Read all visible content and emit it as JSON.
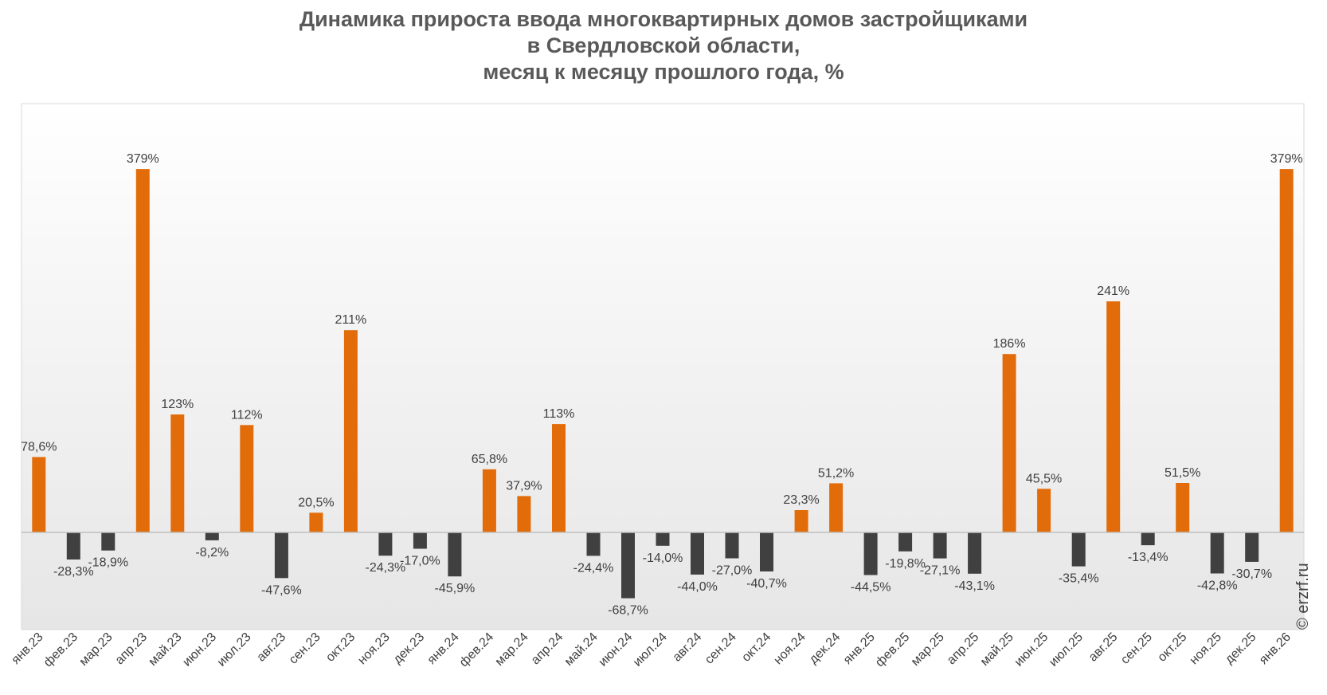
{
  "chart_data": {
    "type": "bar",
    "title_lines": [
      "Динамика прироста ввода многоквартирных домов застройщиками",
      "в Свердловской области,",
      "месяц к месяцу прошлого года, %"
    ],
    "categories": [
      "янв.23",
      "фев.23",
      "мар.23",
      "апр.23",
      "май.23",
      "июн.23",
      "июл.23",
      "авг.23",
      "сен.23",
      "окт.23",
      "ноя.23",
      "дек.23",
      "янв.24",
      "фев.24",
      "мар.24",
      "апр.24",
      "май.24",
      "июн.24",
      "июл.24",
      "авг.24",
      "сен.24",
      "окт.24",
      "ноя.24",
      "дек.24",
      "янв.25",
      "фев.25",
      "мар.25",
      "апр.25",
      "май.25",
      "июн.25",
      "июл.25",
      "авг.25",
      "сен.25",
      "окт.25",
      "ноя.25",
      "дек.25",
      "янв.26"
    ],
    "values": [
      78.6,
      -28.3,
      -18.9,
      379,
      123,
      -8.2,
      112,
      -47.6,
      20.5,
      211,
      -24.3,
      -17.0,
      -45.9,
      65.8,
      37.9,
      113,
      -24.4,
      -68.7,
      -14.0,
      -44.0,
      -27.0,
      -40.7,
      23.3,
      51.2,
      -44.5,
      -19.8,
      -27.1,
      -43.1,
      186,
      45.5,
      -35.4,
      241,
      -13.4,
      51.5,
      -42.8,
      -30.7,
      379
    ],
    "labels": [
      "78,6%",
      "-28,3%",
      "-18,9%",
      "379%",
      "123%",
      "-8,2%",
      "112%",
      "-47,6%",
      "20,5%",
      "211%",
      "-24,3%",
      "-17,0%",
      "-45,9%",
      "65,8%",
      "37,9%",
      "113%",
      "-24,4%",
      "-68,7%",
      "-14,0%",
      "-44,0%",
      "-27,0%",
      "-40,7%",
      "23,3%",
      "51,2%",
      "-44,5%",
      "-19,8%",
      "-27,1%",
      "-43,1%",
      "186%",
      "45,5%",
      "-35,4%",
      "241%",
      "-13,4%",
      "51,5%",
      "-42,8%",
      "-30,7%",
      "379%"
    ],
    "ylim": [
      -100,
      450
    ],
    "colors": {
      "positive": "#E36C0A",
      "negative": "#404040",
      "axis": "#BFBFBF",
      "label": "#404040",
      "title": "#595959"
    },
    "grid": false,
    "legend": "none",
    "watermark": "© erzrf.ru"
  }
}
